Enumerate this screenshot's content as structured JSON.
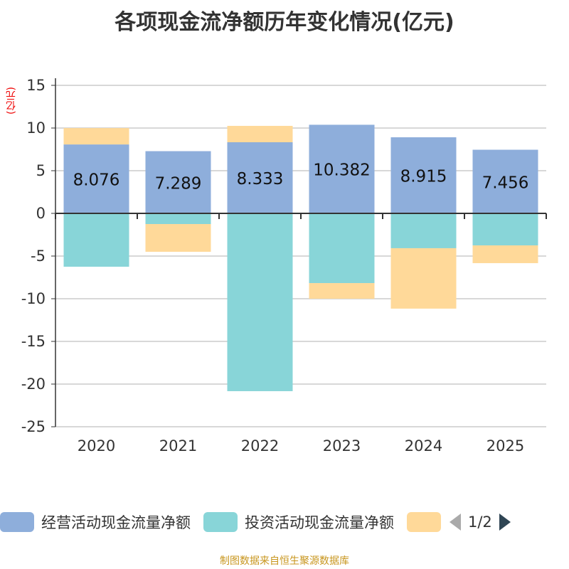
{
  "chart_data": {
    "type": "bar",
    "stacked": true,
    "title": "各项现金流净额历年变化情况(亿元)",
    "ylabel": "(亿元)",
    "categories": [
      "2020",
      "2021",
      "2022",
      "2023",
      "2024",
      "2025"
    ],
    "ylim": [
      -25,
      15
    ],
    "yticks": [
      15,
      10,
      5,
      0,
      -5,
      -10,
      -15,
      -20,
      -25
    ],
    "grid": true,
    "legend_placement": "bottom",
    "series": [
      {
        "name": "经营活动现金流量净额",
        "color": "#8eaedb",
        "values": [
          8.076,
          7.289,
          8.333,
          10.382,
          8.915,
          7.456
        ],
        "labels": [
          "8.076",
          "7.289",
          "8.333",
          "10.382",
          "8.915",
          "7.456"
        ]
      },
      {
        "name": "投资活动现金流量净额",
        "color": "#88d5d8",
        "values": [
          -6.25,
          -1.25,
          -20.83,
          -8.17,
          -4.08,
          -3.75
        ]
      },
      {
        "color": "#ffd999",
        "values": [
          1.92,
          -3.25,
          1.92,
          -1.83,
          -7.08,
          -2.08
        ]
      }
    ]
  },
  "legend": {
    "page": "1/2",
    "prev_icon": "triangle-left-icon",
    "next_icon": "triangle-right-icon"
  },
  "source": "制图数据来自恒生聚源数据库"
}
